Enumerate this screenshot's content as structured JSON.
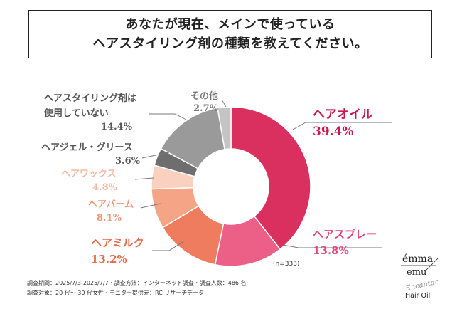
{
  "question": {
    "line1": "あなたが現在、メインで使っている",
    "line2": "ヘアスタイリング剤の種類を教えてください。"
  },
  "chart_data": {
    "type": "pie",
    "donut": true,
    "start": "12 o'clock, clockwise",
    "slices": [
      {
        "label": "ヘアオイル",
        "value": 39.4,
        "pct_text": "39.4%",
        "color": "#d93060",
        "label_color": "#c8194f"
      },
      {
        "label": "ヘアスプレー",
        "value": 13.8,
        "pct_text": "13.8%",
        "color": "#ec5f87",
        "label_color": "#e04a78"
      },
      {
        "label": "ヘアミルク",
        "value": 13.2,
        "pct_text": "13.2%",
        "color": "#ef7c5e",
        "label_color": "#e8684a"
      },
      {
        "label": "ヘアバーム",
        "value": 8.1,
        "pct_text": "8.1%",
        "color": "#f5a486",
        "label_color": "#f0957a"
      },
      {
        "label": "ヘアワックス",
        "value": 4.8,
        "pct_text": "4.8%",
        "color": "#fad0bf",
        "label_color": "#f6b8a4"
      },
      {
        "label": "ヘアジェル・グリース",
        "value": 3.6,
        "pct_text": "3.6%",
        "color": "#6e6e6e",
        "label_color": "#555555"
      },
      {
        "label": "ヘアスタイリング剤は使用していない",
        "label_line1": "ヘアスタイリング剤は",
        "label_line2": "使用していない",
        "value": 14.4,
        "pct_text": "14.4%",
        "color": "#9a9a9a",
        "label_color": "#555555"
      },
      {
        "label": "その他",
        "value": 2.7,
        "pct_text": "2.7%",
        "color": "#c4c4c4",
        "label_color": "#777777"
      }
    ],
    "n_label": "(n=333)"
  },
  "footer": {
    "line1": "調査期間：2025/7/3-2025/7/7・調査方法：インターネット調査・調査人数：486 名",
    "line2": "調査対象：20 代〜 30 代女性・モニター提供元：RC リサーチデータ"
  },
  "logo": {
    "brand_top": "émma",
    "brand_bottom": "emu",
    "script": "Encantar",
    "product": "Hair Oil"
  }
}
